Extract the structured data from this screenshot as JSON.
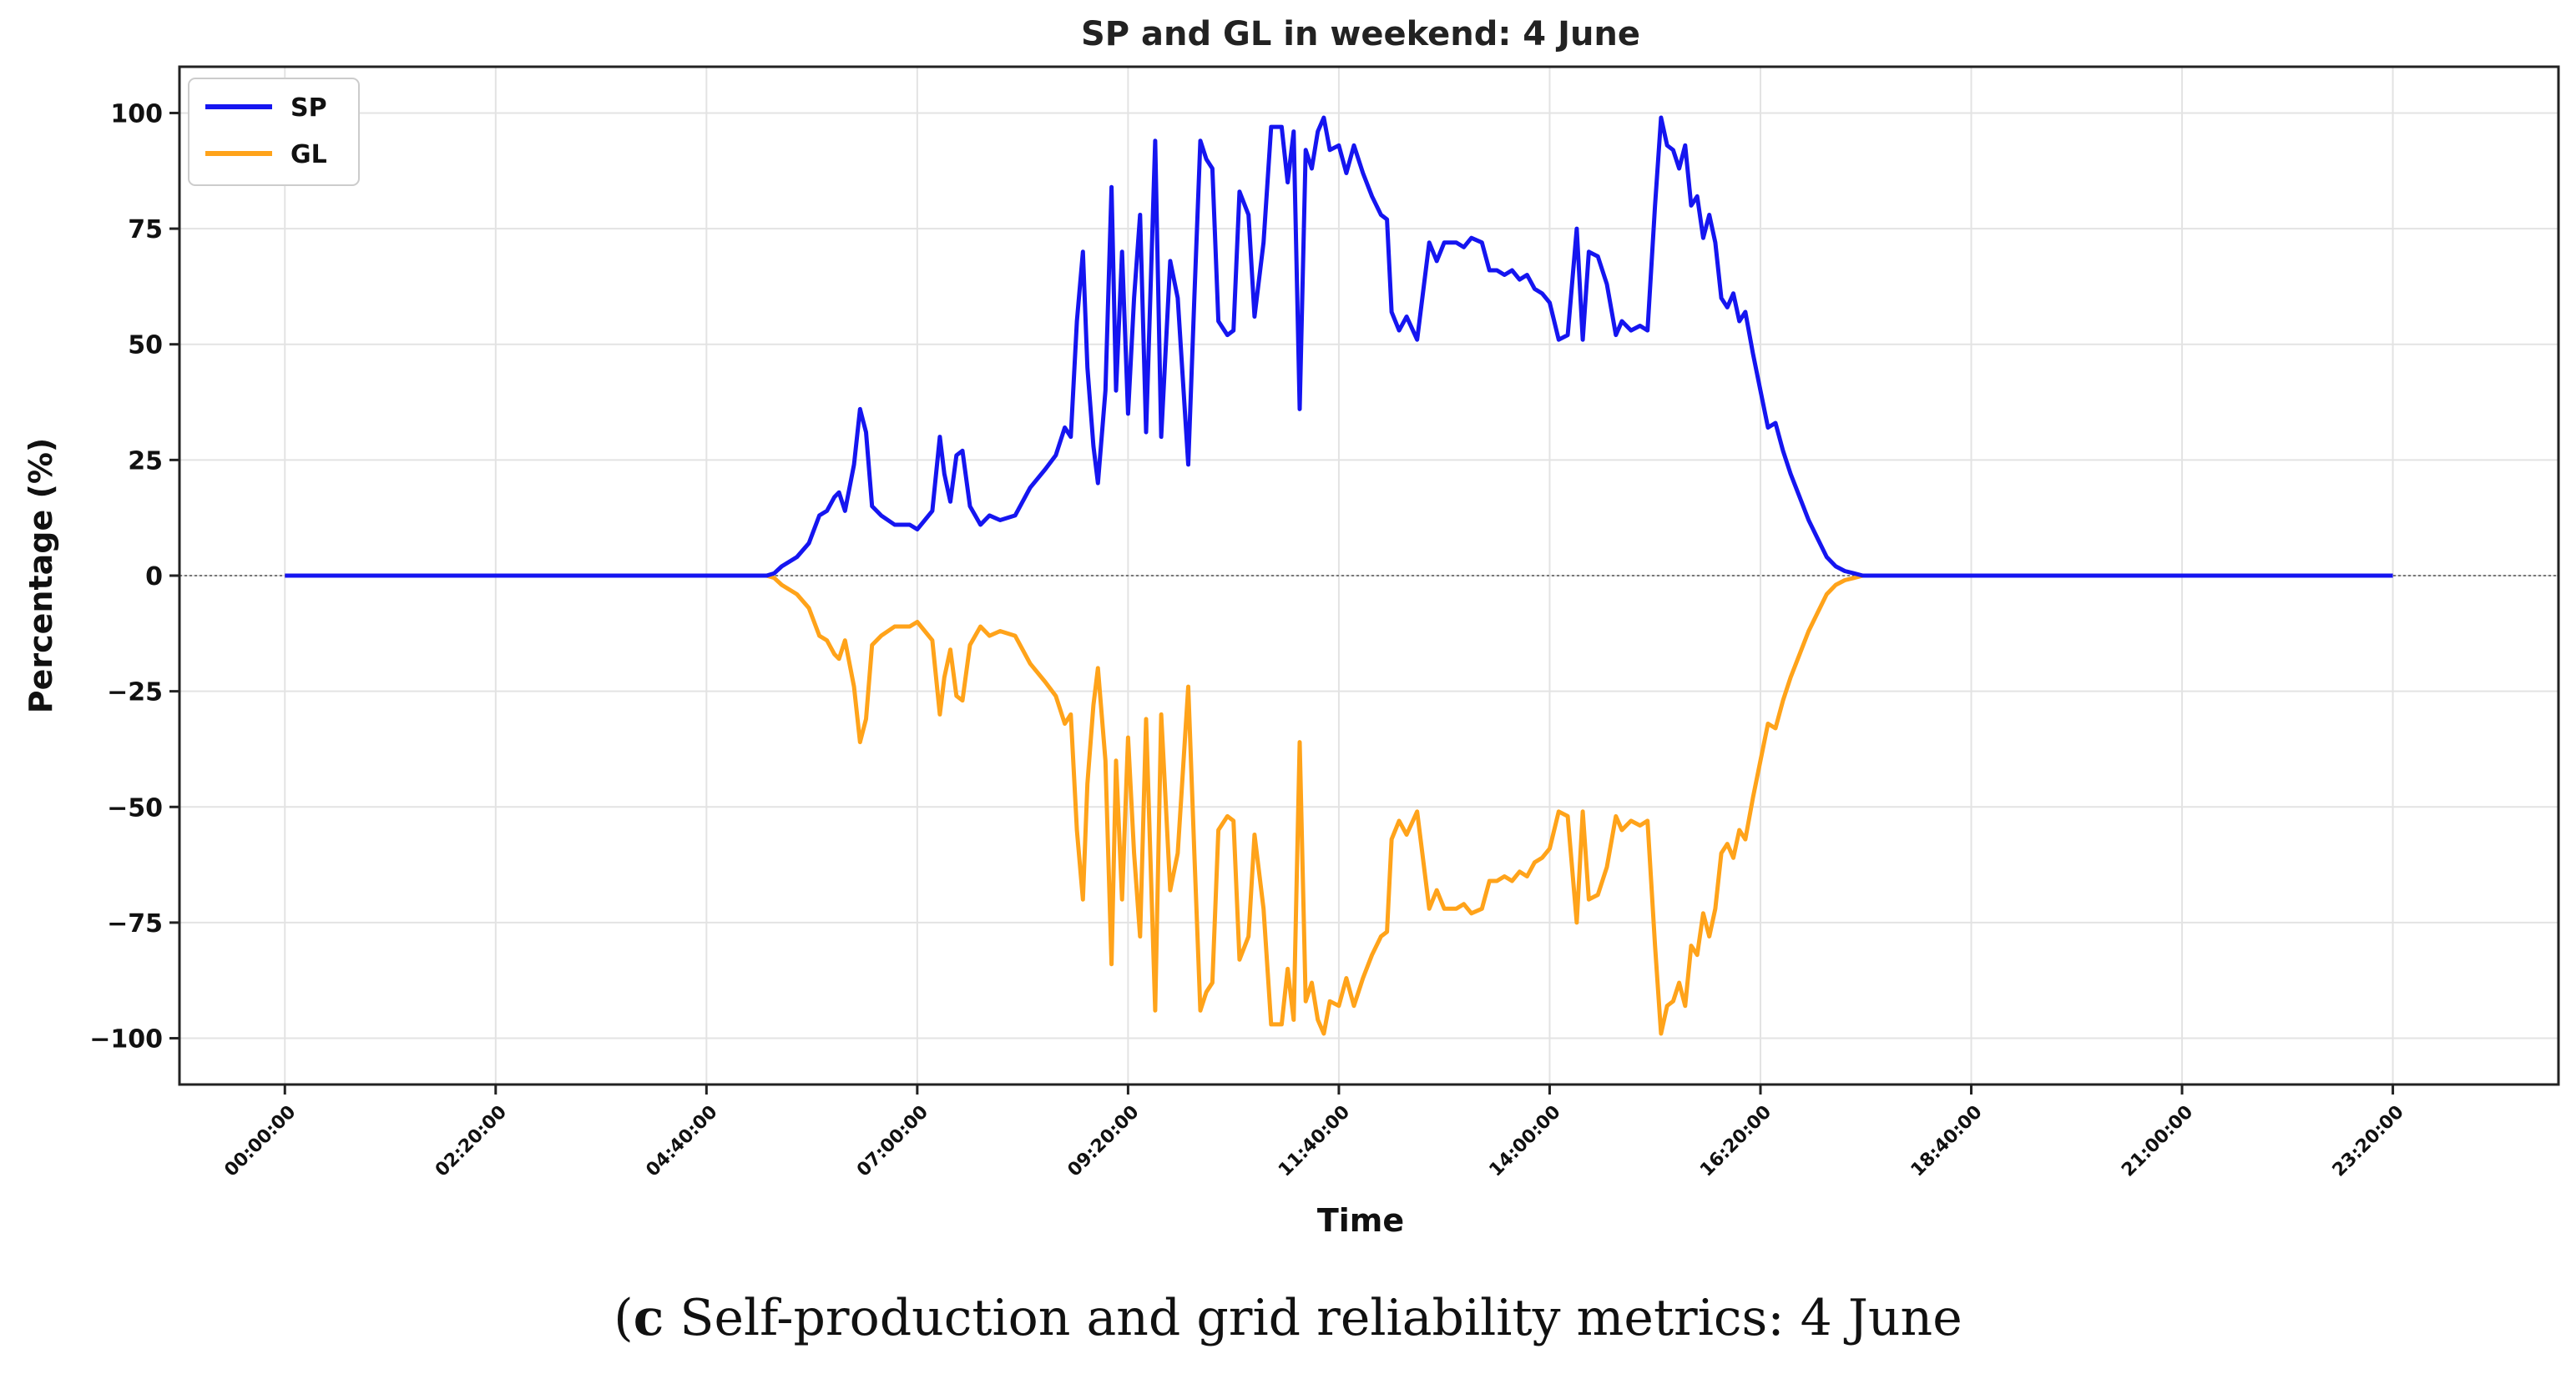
{
  "chart_data": {
    "type": "line",
    "title": "SP and GL in weekend: 4 June",
    "xlabel": "Time",
    "ylabel": "Percentage (%)",
    "ylim": [
      -110,
      110
    ],
    "xlim_minutes": [
      -70,
      1510
    ],
    "yticks": [
      100,
      75,
      50,
      25,
      0,
      -25,
      -50,
      -75,
      -100
    ],
    "ytick_labels": [
      "100",
      "75",
      "50",
      "25",
      "0",
      "−25",
      "−50",
      "−75",
      "−100"
    ],
    "xticks": [
      "00:00:00",
      "02:20:00",
      "04:40:00",
      "07:00:00",
      "09:20:00",
      "11:40:00",
      "14:00:00",
      "16:20:00",
      "18:40:00",
      "21:00:00",
      "23:20:00"
    ],
    "xtick_minutes": [
      0,
      140,
      280,
      420,
      560,
      700,
      840,
      980,
      1120,
      1260,
      1400
    ],
    "legend_position": "top-left",
    "grid": true,
    "zero_line": true,
    "series": [
      {
        "name": "SP",
        "color": "#1515f0",
        "points": [
          [
            0,
            0
          ],
          [
            320,
            0
          ],
          [
            325,
            0.5
          ],
          [
            330,
            2
          ],
          [
            340,
            4
          ],
          [
            348,
            7
          ],
          [
            355,
            13
          ],
          [
            360,
            14
          ],
          [
            365,
            17
          ],
          [
            368,
            18
          ],
          [
            372,
            14
          ],
          [
            378,
            24
          ],
          [
            382,
            36
          ],
          [
            386,
            31
          ],
          [
            390,
            15
          ],
          [
            396,
            13
          ],
          [
            405,
            11
          ],
          [
            415,
            11
          ],
          [
            420,
            10
          ],
          [
            425,
            12
          ],
          [
            430,
            14
          ],
          [
            435,
            30
          ],
          [
            438,
            22
          ],
          [
            442,
            16
          ],
          [
            446,
            26
          ],
          [
            450,
            27
          ],
          [
            455,
            15
          ],
          [
            462,
            11
          ],
          [
            468,
            13
          ],
          [
            475,
            12
          ],
          [
            485,
            13
          ],
          [
            495,
            19
          ],
          [
            505,
            23
          ],
          [
            512,
            26
          ],
          [
            518,
            32
          ],
          [
            522,
            30
          ],
          [
            526,
            55
          ],
          [
            530,
            70
          ],
          [
            533,
            45
          ],
          [
            537,
            28
          ],
          [
            540,
            20
          ],
          [
            545,
            40
          ],
          [
            549,
            84
          ],
          [
            552,
            40
          ],
          [
            556,
            70
          ],
          [
            560,
            35
          ],
          [
            564,
            60
          ],
          [
            568,
            78
          ],
          [
            572,
            31
          ],
          [
            578,
            94
          ],
          [
            582,
            30
          ],
          [
            588,
            68
          ],
          [
            593,
            60
          ],
          [
            600,
            24
          ],
          [
            604,
            60
          ],
          [
            608,
            94
          ],
          [
            612,
            90
          ],
          [
            616,
            88
          ],
          [
            620,
            55
          ],
          [
            626,
            52
          ],
          [
            630,
            53
          ],
          [
            634,
            83
          ],
          [
            640,
            78
          ],
          [
            644,
            56
          ],
          [
            650,
            72
          ],
          [
            655,
            97
          ],
          [
            662,
            97
          ],
          [
            666,
            85
          ],
          [
            670,
            96
          ],
          [
            674,
            36
          ],
          [
            678,
            92
          ],
          [
            682,
            88
          ],
          [
            686,
            96
          ],
          [
            690,
            99
          ],
          [
            694,
            92
          ],
          [
            700,
            93
          ],
          [
            705,
            87
          ],
          [
            710,
            93
          ],
          [
            716,
            87
          ],
          [
            722,
            82
          ],
          [
            728,
            78
          ],
          [
            732,
            77
          ],
          [
            735,
            57
          ],
          [
            740,
            53
          ],
          [
            745,
            56
          ],
          [
            752,
            51
          ],
          [
            760,
            72
          ],
          [
            765,
            68
          ],
          [
            770,
            72
          ],
          [
            778,
            72
          ],
          [
            783,
            71
          ],
          [
            788,
            73
          ],
          [
            795,
            72
          ],
          [
            800,
            66
          ],
          [
            805,
            66
          ],
          [
            810,
            65
          ],
          [
            815,
            66
          ],
          [
            820,
            64
          ],
          [
            825,
            65
          ],
          [
            830,
            62
          ],
          [
            835,
            61
          ],
          [
            840,
            59
          ],
          [
            846,
            51
          ],
          [
            852,
            52
          ],
          [
            858,
            75
          ],
          [
            862,
            51
          ],
          [
            866,
            70
          ],
          [
            872,
            69
          ],
          [
            878,
            63
          ],
          [
            884,
            52
          ],
          [
            888,
            55
          ],
          [
            894,
            53
          ],
          [
            900,
            54
          ],
          [
            905,
            53
          ],
          [
            910,
            80
          ],
          [
            914,
            99
          ],
          [
            918,
            93
          ],
          [
            922,
            92
          ],
          [
            926,
            88
          ],
          [
            930,
            93
          ],
          [
            934,
            80
          ],
          [
            938,
            82
          ],
          [
            942,
            73
          ],
          [
            946,
            78
          ],
          [
            950,
            72
          ],
          [
            954,
            60
          ],
          [
            958,
            58
          ],
          [
            962,
            61
          ],
          [
            966,
            55
          ],
          [
            970,
            57
          ],
          [
            975,
            48
          ],
          [
            980,
            40
          ],
          [
            985,
            32
          ],
          [
            990,
            33
          ],
          [
            995,
            27
          ],
          [
            1000,
            22
          ],
          [
            1006,
            17
          ],
          [
            1012,
            12
          ],
          [
            1018,
            8
          ],
          [
            1024,
            4
          ],
          [
            1030,
            2
          ],
          [
            1036,
            1
          ],
          [
            1042,
            0.5
          ],
          [
            1048,
            0
          ],
          [
            1400,
            0
          ]
        ]
      },
      {
        "name": "GL",
        "color": "#ffa31a",
        "mirror_of": "SP"
      }
    ]
  },
  "caption": {
    "label": "c",
    "text": " Self-production and grid reliability metrics: 4 June"
  }
}
